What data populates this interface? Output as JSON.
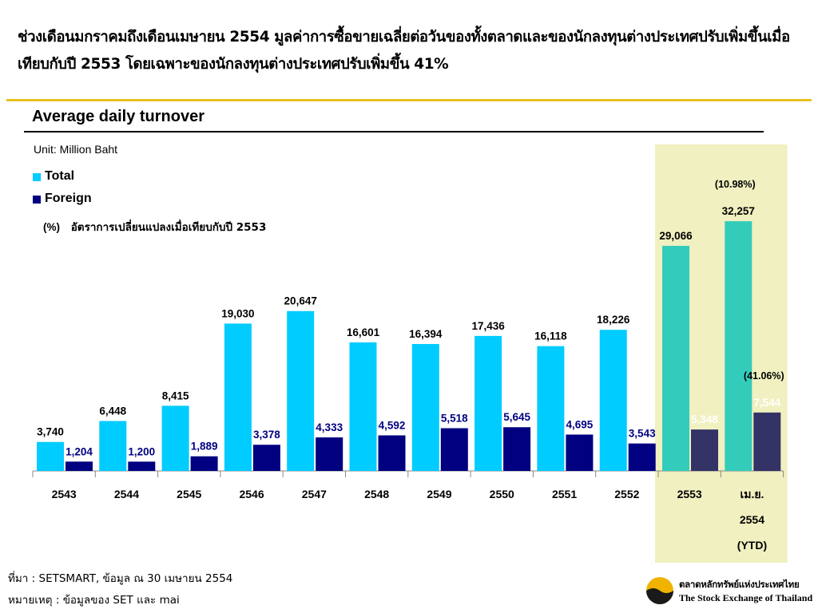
{
  "headline": "ช่วงเดือนมกราคมถึงเดือนเมษายน 2554 มูลค่าการซื้อขายเฉลี่ยต่อวันของทั้งตลาดและของนักลงทุนต่างประเทศปรับเพิ่มขึ้นเมื่อเทียบกับปี 2553 โดยเฉพาะของนักลงทุนต่างประเทศปรับเพิ่มขึ้น 41%",
  "unit": "Unit: Million Baht",
  "legend": {
    "total": "Total",
    "foreign": "Foreign"
  },
  "pct_note": {
    "symbol": "(%)",
    "text": "อัตราการเปลี่ยนแปลงเมื่อเทียบกับปี 2553"
  },
  "colors": {
    "total": "#00ccff",
    "foreign": "#000080",
    "total_highlight": "#33ccbb",
    "foreign_highlight": "#333366",
    "highlight_bg": "#f0f0c0",
    "gold_rule": "#e8c020",
    "logo_gold": "#f0b400"
  },
  "footer": {
    "source": "ที่มา : SETSMART, ข้อมูล ณ 30 เมษายน 2554",
    "note": "หมายเหตุ : ข้อมูลของ SET และ mai"
  },
  "logo": {
    "icon": "set-logo-icon",
    "thai": "ตลาดหลักทรัพย์แห่งประเทศไทย",
    "english": "The Stock Exchange of Thailand"
  },
  "chart_data": {
    "type": "bar",
    "title": "Average daily turnover",
    "ylabel": "",
    "categories": [
      "2543",
      "2544",
      "2545",
      "2546",
      "2547",
      "2548",
      "2549",
      "2550",
      "2551",
      "2552",
      "2553",
      [
        "เม.ย.",
        "2554",
        "(YTD)"
      ]
    ],
    "series": [
      {
        "name": "Total",
        "values": [
          3740,
          6448,
          8415,
          19030,
          20647,
          16601,
          16394,
          17436,
          16118,
          18226,
          29066,
          32257
        ],
        "labels": [
          "3,740",
          "6,448",
          "8,415",
          "19,030",
          "20,647",
          "16,601",
          "16,394",
          "17,436",
          "16,118",
          "18,226",
          "29,066",
          "32,257"
        ]
      },
      {
        "name": "Foreign",
        "values": [
          1204,
          1200,
          1889,
          3378,
          4333,
          4592,
          5518,
          5645,
          4695,
          3543,
          5348,
          7544
        ],
        "labels": [
          "1,204",
          "1,200",
          "1,889",
          "3,378",
          "4,333",
          "4,592",
          "5,518",
          "5,645",
          "4,695",
          "3,543",
          "5,348",
          "7,544"
        ]
      }
    ],
    "highlighted_categories": [
      10,
      11
    ],
    "annotations": [
      {
        "text": "(10.98%)",
        "category": 11,
        "series": "Total"
      },
      {
        "text": "(41.06%)",
        "category": 11,
        "series": "Foreign"
      }
    ],
    "ylim": [
      0,
      35000
    ],
    "grid": false,
    "legend": "top-left"
  }
}
